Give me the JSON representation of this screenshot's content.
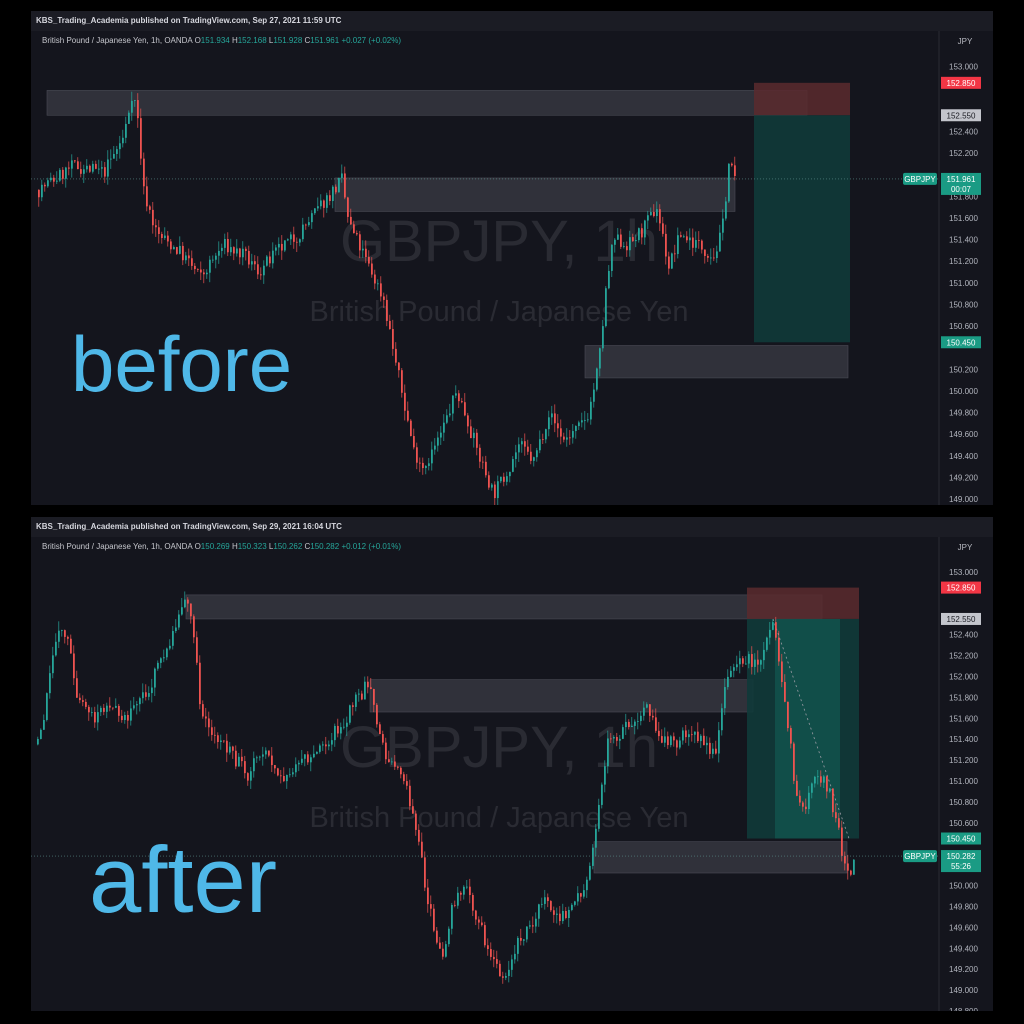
{
  "panels": [
    {
      "id": "before",
      "published": "KBS_Trading_Academia published on TradingView.com, Sep 27, 2021 11:59 UTC",
      "symbol_desc": "British Pound / Japanese Yen, 1h, OANDA",
      "ohlc": {
        "o": "151.934",
        "h": "152.168",
        "l": "151.928",
        "c": "151.961",
        "chg": "+0.027 (+0.02%)"
      },
      "axis_currency": "JPY",
      "overlay_label": "before",
      "watermark_main": "GBPJPY, 1h",
      "watermark_sub": "British Pound / Japanese Yen",
      "badge_symbol": "GBPJPY",
      "current_price": "151.961",
      "countdown": "00:07"
    },
    {
      "id": "after",
      "published": "KBS_Trading_Academia published on TradingView.com, Sep 29, 2021 16:04 UTC",
      "symbol_desc": "British Pound / Japanese Yen, 1h, OANDA",
      "ohlc": {
        "o": "150.269",
        "h": "150.323",
        "l": "150.262",
        "c": "150.282",
        "chg": "+0.012 (+0.01%)"
      },
      "axis_currency": "JPY",
      "overlay_label": "after",
      "watermark_main": "GBPJPY, 1h",
      "watermark_sub": "British Pound / Japanese Yen",
      "badge_symbol": "GBPJPY",
      "current_price": "150.282",
      "countdown": "55:26"
    }
  ],
  "colors": {
    "up": "#26a69a",
    "down": "#ef5350",
    "stop_zone": "#5a2a2e",
    "target_zone": "#0f3a3a",
    "zone_box": "#3a3b44",
    "overlay_text": "#4fb8e8",
    "stop_badge": "#f23645",
    "entry_badge": "#c3c5cc",
    "target_badge": "#1a9b84"
  },
  "chart_data": [
    {
      "type": "candlestick",
      "title": "GBPJPY, 1h",
      "ylim": [
        149.0,
        153.2
      ],
      "y_ticks": [
        {
          "value": 153.0,
          "label": "153.000"
        },
        {
          "value": 152.4,
          "label": "152.400"
        },
        {
          "value": 152.2,
          "label": "152.200"
        },
        {
          "value": 151.8,
          "label": "151.800"
        },
        {
          "value": 151.6,
          "label": "151.600"
        },
        {
          "value": 151.4,
          "label": "151.400"
        },
        {
          "value": 151.2,
          "label": "151.200"
        },
        {
          "value": 151.0,
          "label": "151.000"
        },
        {
          "value": 150.8,
          "label": "150.800"
        },
        {
          "value": 150.6,
          "label": "150.600"
        },
        {
          "value": 150.2,
          "label": "150.200"
        },
        {
          "value": 150.0,
          "label": "150.000"
        },
        {
          "value": 149.8,
          "label": "149.800"
        },
        {
          "value": 149.6,
          "label": "149.600"
        },
        {
          "value": 149.4,
          "label": "149.400"
        },
        {
          "value": 149.2,
          "label": "149.200"
        },
        {
          "value": 149.0,
          "label": "149.000"
        }
      ],
      "price_levels": {
        "stop": 152.85,
        "entry": 152.55,
        "target": 150.45
      },
      "level_labels": {
        "stop": "152.850",
        "entry": "152.550",
        "target": "150.450"
      },
      "current": 151.961,
      "zones": [
        {
          "name": "upper-resistance",
          "from": 152.55,
          "to": 152.78,
          "start": 9,
          "end": 769
        },
        {
          "name": "middle-zone",
          "from": 151.66,
          "to": 151.97,
          "start": 297,
          "end": 697
        },
        {
          "name": "lower-support",
          "from": 150.12,
          "to": 150.42,
          "start": 547,
          "end": 810
        }
      ],
      "position": {
        "start": 716,
        "end": 812
      },
      "path": [
        [
          0,
          151.86
        ],
        [
          35,
          152.08
        ],
        [
          65,
          152.02
        ],
        [
          85,
          152.35
        ],
        [
          93,
          152.75
        ],
        [
          98,
          152.62
        ],
        [
          105,
          151.85
        ],
        [
          118,
          151.45
        ],
        [
          140,
          151.3
        ],
        [
          162,
          151.05
        ],
        [
          185,
          151.35
        ],
        [
          205,
          151.25
        ],
        [
          220,
          151.1
        ],
        [
          240,
          151.3
        ],
        [
          260,
          151.45
        ],
        [
          285,
          151.75
        ],
        [
          303,
          151.95
        ],
        [
          310,
          151.55
        ],
        [
          325,
          151.25
        ],
        [
          345,
          150.85
        ],
        [
          355,
          150.35
        ],
        [
          365,
          149.9
        ],
        [
          375,
          149.45
        ],
        [
          385,
          149.3
        ],
        [
          400,
          149.55
        ],
        [
          418,
          150.0
        ],
        [
          428,
          149.75
        ],
        [
          440,
          149.4
        ],
        [
          455,
          149.05
        ],
        [
          465,
          149.2
        ],
        [
          480,
          149.5
        ],
        [
          495,
          149.35
        ],
        [
          510,
          149.8
        ],
        [
          525,
          149.55
        ],
        [
          540,
          149.65
        ],
        [
          550,
          149.8
        ],
        [
          560,
          150.25
        ],
        [
          568,
          151.0
        ],
        [
          575,
          151.4
        ],
        [
          590,
          151.35
        ],
        [
          605,
          151.5
        ],
        [
          618,
          151.7
        ],
        [
          630,
          151.15
        ],
        [
          642,
          151.45
        ],
        [
          660,
          151.35
        ],
        [
          675,
          151.25
        ],
        [
          683,
          151.45
        ],
        [
          690,
          152.1
        ],
        [
          697,
          151.96
        ]
      ],
      "plot_right": 908
    },
    {
      "type": "candlestick",
      "title": "GBPJPY, 1h",
      "ylim": [
        148.8,
        153.2
      ],
      "y_ticks": [
        {
          "value": 153.0,
          "label": "153.000"
        },
        {
          "value": 152.4,
          "label": "152.400"
        },
        {
          "value": 152.2,
          "label": "152.200"
        },
        {
          "value": 152.0,
          "label": "152.000"
        },
        {
          "value": 151.8,
          "label": "151.800"
        },
        {
          "value": 151.6,
          "label": "151.600"
        },
        {
          "value": 151.4,
          "label": "151.400"
        },
        {
          "value": 151.2,
          "label": "151.200"
        },
        {
          "value": 151.0,
          "label": "151.000"
        },
        {
          "value": 150.8,
          "label": "150.800"
        },
        {
          "value": 150.6,
          "label": "150.600"
        },
        {
          "value": 150.0,
          "label": "150.000"
        },
        {
          "value": 149.8,
          "label": "149.800"
        },
        {
          "value": 149.6,
          "label": "149.600"
        },
        {
          "value": 149.4,
          "label": "149.400"
        },
        {
          "value": 149.2,
          "label": "149.200"
        },
        {
          "value": 149.0,
          "label": "149.000"
        },
        {
          "value": 148.8,
          "label": "148.800"
        }
      ],
      "price_levels": {
        "stop": 152.85,
        "entry": 152.55,
        "target": 150.45
      },
      "level_labels": {
        "stop": "152.850",
        "entry": "152.550",
        "target": "150.450"
      },
      "current": 150.282,
      "zones": [
        {
          "name": "upper-resistance",
          "from": 152.55,
          "to": 152.78,
          "start": 149,
          "end": 785
        },
        {
          "name": "middle-zone",
          "from": 151.66,
          "to": 151.97,
          "start": 333,
          "end": 716
        },
        {
          "name": "lower-support",
          "from": 150.12,
          "to": 150.42,
          "start": 557,
          "end": 810
        }
      ],
      "position": {
        "start": 710,
        "end": 822
      },
      "path": [
        [
          0,
          151.35
        ],
        [
          10,
          151.85
        ],
        [
          20,
          152.45
        ],
        [
          30,
          152.3
        ],
        [
          40,
          151.8
        ],
        [
          55,
          151.6
        ],
        [
          70,
          151.75
        ],
        [
          90,
          151.6
        ],
        [
          110,
          151.85
        ],
        [
          125,
          152.2
        ],
        [
          140,
          152.5
        ],
        [
          148,
          152.75
        ],
        [
          155,
          152.55
        ],
        [
          163,
          151.65
        ],
        [
          175,
          151.45
        ],
        [
          190,
          151.3
        ],
        [
          210,
          151.05
        ],
        [
          225,
          151.3
        ],
        [
          245,
          151.05
        ],
        [
          265,
          151.2
        ],
        [
          285,
          151.35
        ],
        [
          305,
          151.55
        ],
        [
          320,
          151.8
        ],
        [
          333,
          151.95
        ],
        [
          340,
          151.5
        ],
        [
          350,
          151.2
        ],
        [
          365,
          151.05
        ],
        [
          375,
          150.65
        ],
        [
          385,
          150.15
        ],
        [
          395,
          149.6
        ],
        [
          405,
          149.35
        ],
        [
          415,
          149.85
        ],
        [
          428,
          150.0
        ],
        [
          440,
          149.65
        ],
        [
          455,
          149.3
        ],
        [
          465,
          149.1
        ],
        [
          478,
          149.4
        ],
        [
          492,
          149.6
        ],
        [
          505,
          149.85
        ],
        [
          520,
          149.7
        ],
        [
          535,
          149.75
        ],
        [
          550,
          150.1
        ],
        [
          560,
          150.7
        ],
        [
          570,
          151.35
        ],
        [
          580,
          151.45
        ],
        [
          595,
          151.55
        ],
        [
          610,
          151.7
        ],
        [
          620,
          151.45
        ],
        [
          635,
          151.35
        ],
        [
          650,
          151.45
        ],
        [
          665,
          151.35
        ],
        [
          678,
          151.3
        ],
        [
          685,
          151.8
        ],
        [
          695,
          152.1
        ],
        [
          710,
          152.15
        ],
        [
          720,
          152.1
        ],
        [
          728,
          152.3
        ],
        [
          736,
          152.55
        ],
        [
          745,
          151.9
        ],
        [
          752,
          151.4
        ],
        [
          758,
          150.9
        ],
        [
          765,
          150.7
        ],
        [
          775,
          151.0
        ],
        [
          785,
          151.05
        ],
        [
          792,
          150.9
        ],
        [
          800,
          150.55
        ],
        [
          807,
          150.2
        ],
        [
          812,
          150.05
        ],
        [
          818,
          150.28
        ]
      ],
      "plot_right": 908
    }
  ]
}
